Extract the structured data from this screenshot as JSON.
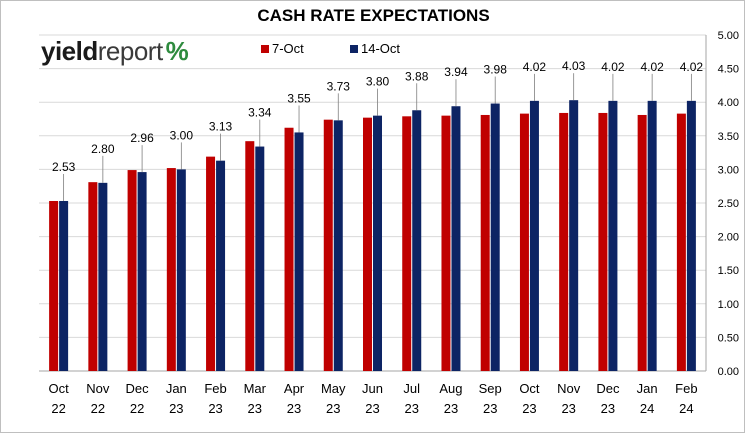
{
  "logo": {
    "part1": "yield",
    "part2": "report",
    "part3": "%"
  },
  "chart_data": {
    "type": "bar",
    "title": "CASH RATE EXPECTATIONS",
    "categories": [
      [
        "Oct",
        "22"
      ],
      [
        "Nov",
        "22"
      ],
      [
        "Dec",
        "22"
      ],
      [
        "Jan",
        "23"
      ],
      [
        "Feb",
        "23"
      ],
      [
        "Mar",
        "23"
      ],
      [
        "Apr",
        "23"
      ],
      [
        "May",
        "23"
      ],
      [
        "Jun",
        "23"
      ],
      [
        "Jul",
        "23"
      ],
      [
        "Aug",
        "23"
      ],
      [
        "Sep",
        "23"
      ],
      [
        "Oct",
        "23"
      ],
      [
        "Nov",
        "23"
      ],
      [
        "Dec",
        "23"
      ],
      [
        "Jan",
        "24"
      ],
      [
        "Feb",
        "24"
      ]
    ],
    "series": [
      {
        "name": "7-Oct",
        "color": "#c00000",
        "values": [
          2.53,
          2.81,
          2.99,
          3.02,
          3.19,
          3.42,
          3.62,
          3.74,
          3.77,
          3.79,
          3.8,
          3.81,
          3.83,
          3.84,
          3.84,
          3.81,
          3.83
        ]
      },
      {
        "name": "14-Oct",
        "color": "#0d2464",
        "values": [
          2.53,
          2.8,
          2.96,
          3.0,
          3.13,
          3.34,
          3.55,
          3.73,
          3.8,
          3.88,
          3.94,
          3.98,
          4.02,
          4.03,
          4.02,
          4.02,
          4.02
        ]
      }
    ],
    "data_labels": [
      "2.53",
      "2.80",
      "2.96",
      "3.00",
      "3.13",
      "3.34",
      "3.55",
      "3.73",
      "3.80",
      "3.88",
      "3.94",
      "3.98",
      "4.02",
      "4.03",
      "4.02",
      "4.02",
      "4.02"
    ],
    "y_ticks": [
      "0.00",
      "0.50",
      "1.00",
      "1.50",
      "2.00",
      "2.50",
      "3.00",
      "3.50",
      "4.00",
      "4.50",
      "5.00"
    ],
    "ylim": [
      0,
      5
    ],
    "y_axis_side": "right",
    "grid": true,
    "legend_position": "top"
  }
}
